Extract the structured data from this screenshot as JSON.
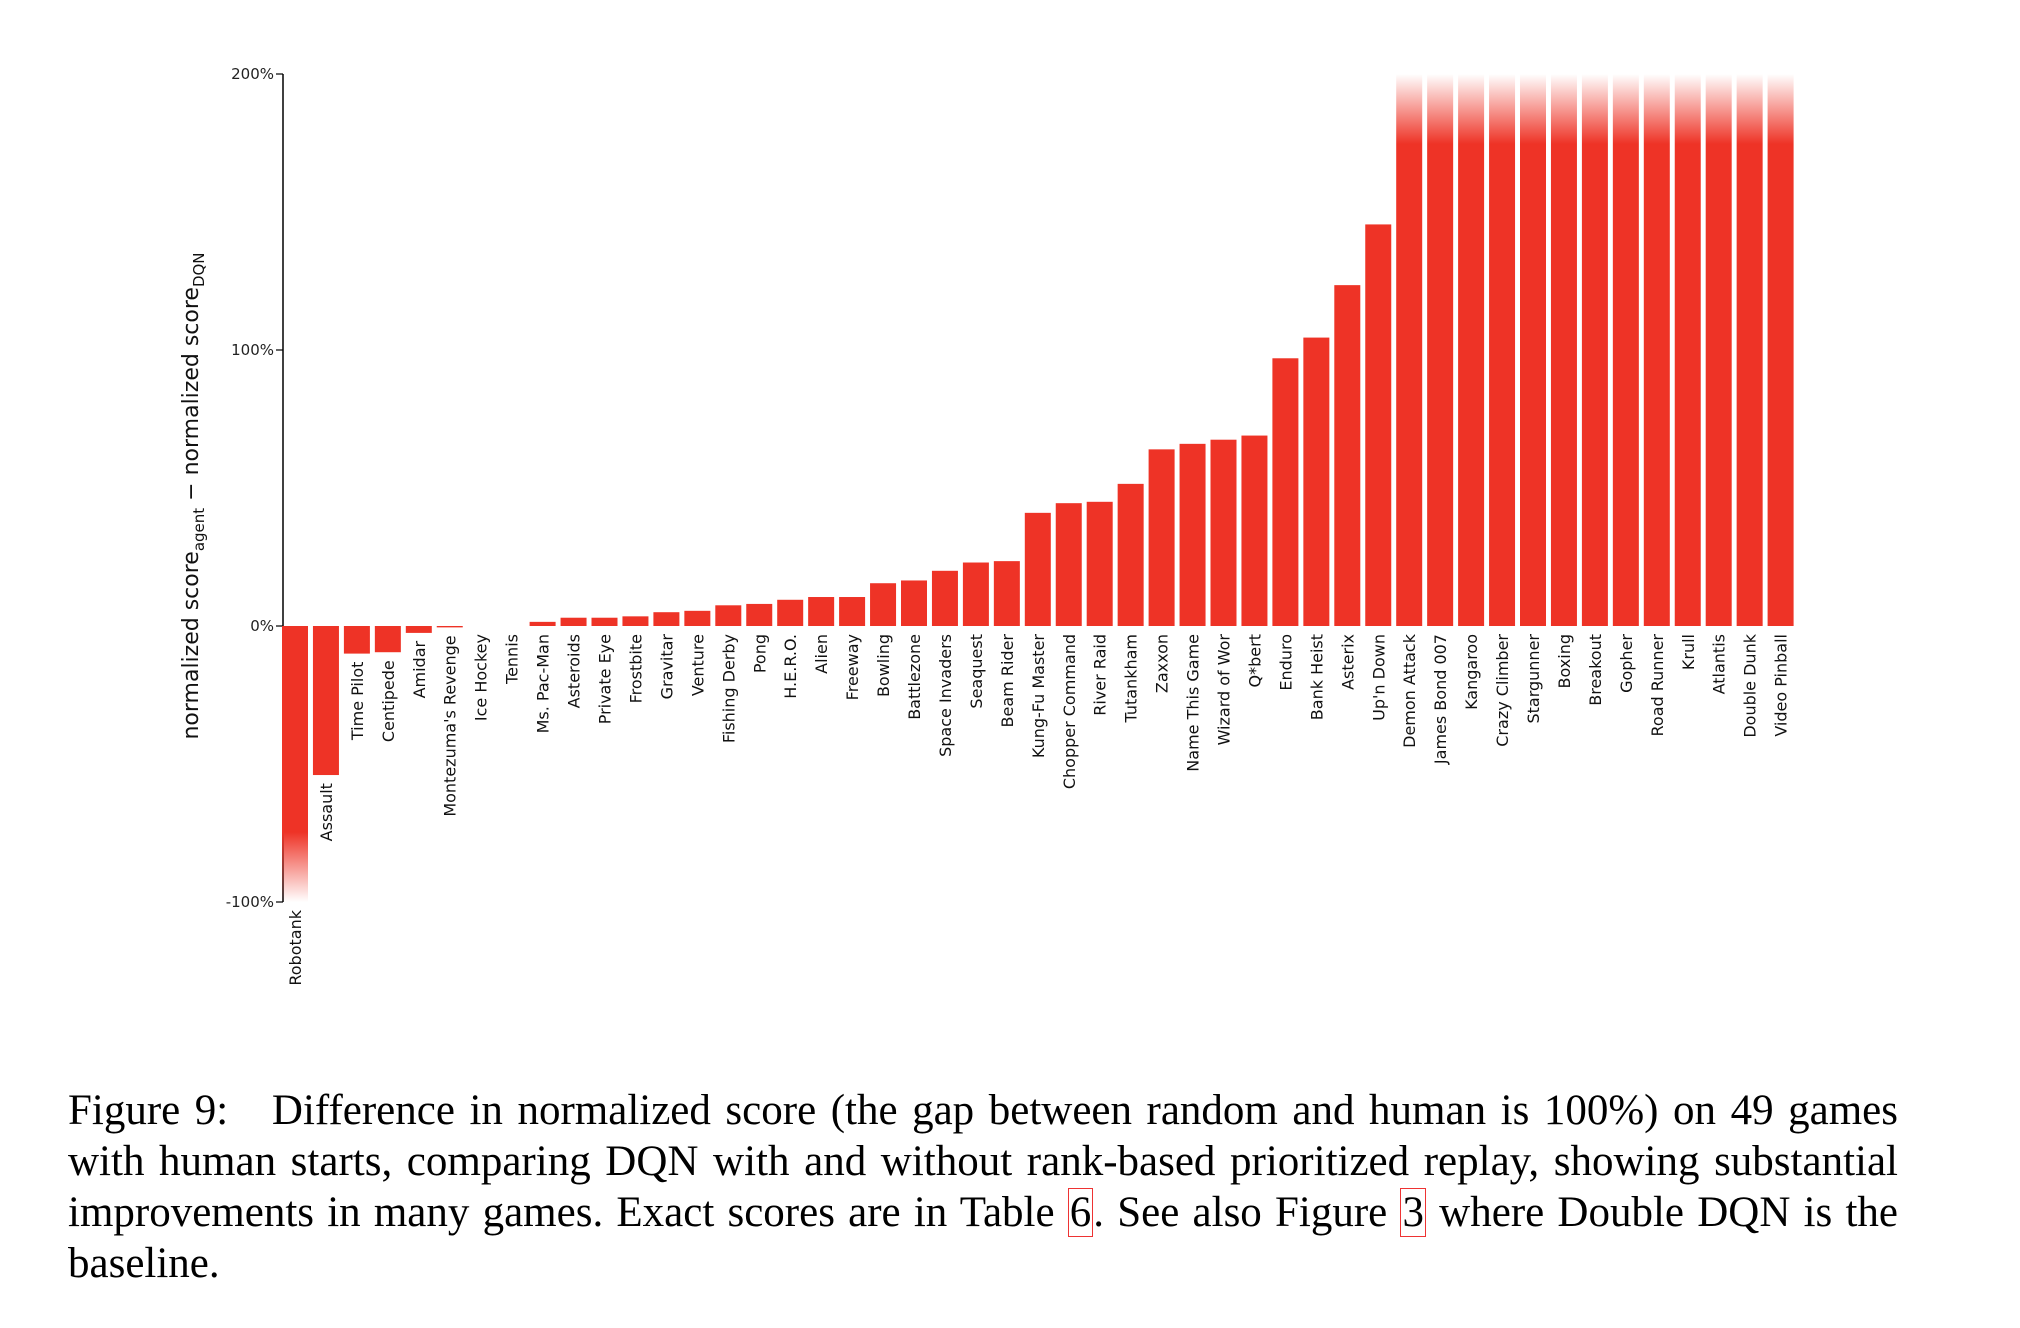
{
  "chart_data": {
    "type": "bar",
    "ylabel": {
      "pre": "normalized score",
      "sub1": "agent",
      "mid": " − normalized score",
      "sub2": "DQN"
    },
    "ylim": [
      -100,
      200
    ],
    "yticks": [
      {
        "value": 200,
        "label": "200%"
      },
      {
        "value": 100,
        "label": "100%"
      },
      {
        "value": 0,
        "label": "0%"
      },
      {
        "value": -100,
        "label": "-100%"
      }
    ],
    "bar_color": "#ee3326",
    "categories": [
      "Robotank",
      "Assault",
      "Time Pilot",
      "Centipede",
      "Amidar",
      "Montezuma's Revenge",
      "Ice Hockey",
      "Tennis",
      "Ms. Pac-Man",
      "Asteroids",
      "Private Eye",
      "Frostbite",
      "Gravitar",
      "Venture",
      "Fishing Derby",
      "Pong",
      "H.E.R.O.",
      "Alien",
      "Freeway",
      "Bowling",
      "Battlezone",
      "Space Invaders",
      "Seaquest",
      "Beam Rider",
      "Kung-Fu Master",
      "Chopper Command",
      "River Raid",
      "Tutankham",
      "Zaxxon",
      "Name This Game",
      "Wizard of Wor",
      "Q*bert",
      "Enduro",
      "Bank Heist",
      "Asterix",
      "Up'n Down",
      "Demon Attack",
      "James Bond 007",
      "Kangaroo",
      "Crazy Climber",
      "Stargunner",
      "Boxing",
      "Breakout",
      "Gopher",
      "Road Runner",
      "Krull",
      "Atlantis",
      "Double Dunk",
      "Video Pinball"
    ],
    "values": [
      -100,
      -54,
      -10,
      -9.5,
      -2.5,
      -0.5,
      0,
      0,
      1.5,
      3,
      3,
      3.5,
      5,
      5.5,
      7.5,
      8,
      9.5,
      10.5,
      10.5,
      15.5,
      16.5,
      20,
      23,
      23.5,
      41,
      44.5,
      45,
      51.5,
      64,
      66,
      67.5,
      69,
      97,
      104.5,
      123.5,
      145.5,
      200,
      200,
      200,
      200,
      200,
      200,
      200,
      200,
      200,
      200,
      200,
      200,
      200
    ],
    "clipped_min": -100,
    "clipped_max": 200
  },
  "caption": {
    "figure": "Figure 9:",
    "text_a": "Difference in normalized score (the gap between random and human is 100%) on 49 games with human starts, comparing DQN with and without rank-based prioritized replay, showing substantial improvements in many games. Exact scores are in Table ",
    "ref_table": "6",
    "text_b": ". See also Figure ",
    "ref_figure": "3",
    "text_c": " where Double DQN is the baseline."
  }
}
